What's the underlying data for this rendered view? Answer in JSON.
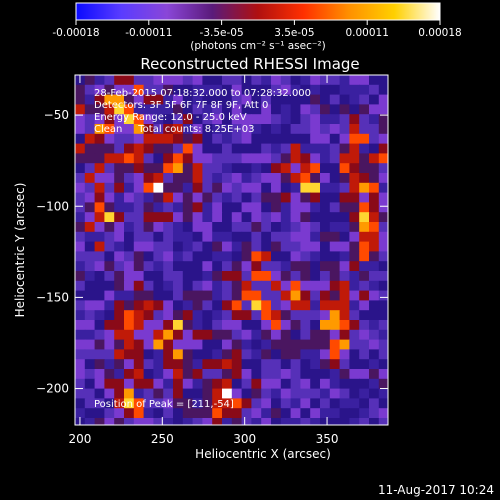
{
  "colorbar": {
    "ticks": [
      "-0.00018",
      "-0.00011",
      "-3.5e-05",
      "3.5e-05",
      "0.00011",
      "0.00018"
    ],
    "units_label": "(photons cm⁻² s⁻¹ asec⁻²)",
    "stops": [
      "#0a0aff",
      "#5a3cff",
      "#8a46d8",
      "#5a1a7a",
      "#b01010",
      "#ff3000",
      "#ff9000",
      "#ffd000",
      "#ffffff"
    ]
  },
  "chart_data": {
    "type": "heatmap",
    "title": "Reconstructed RHESSI Image",
    "xlabel": "Heliocentric X (arcsec)",
    "ylabel": "Heliocentric Y (arcsec)",
    "xlim": [
      197,
      387
    ],
    "ylim": [
      -220,
      -28
    ],
    "xticks": [
      200,
      250,
      300,
      350
    ],
    "yticks": [
      -50,
      -100,
      -150,
      -200
    ],
    "annotations": [
      "28-Feb-2015 07:18:32.000 to 07:28:32.000",
      "Detectors: 3F 5F 6F 7F 8F 9F, Att 0",
      "Energy Range: 12.0 - 25.0 keV",
      "Clean     Total counts: 8.25E+03"
    ],
    "peak_label": "Position of Peak = [211,-54]",
    "peak": [
      211,
      -54
    ]
  },
  "footer": {
    "timestamp": "11-Aug-2017 10:24"
  }
}
